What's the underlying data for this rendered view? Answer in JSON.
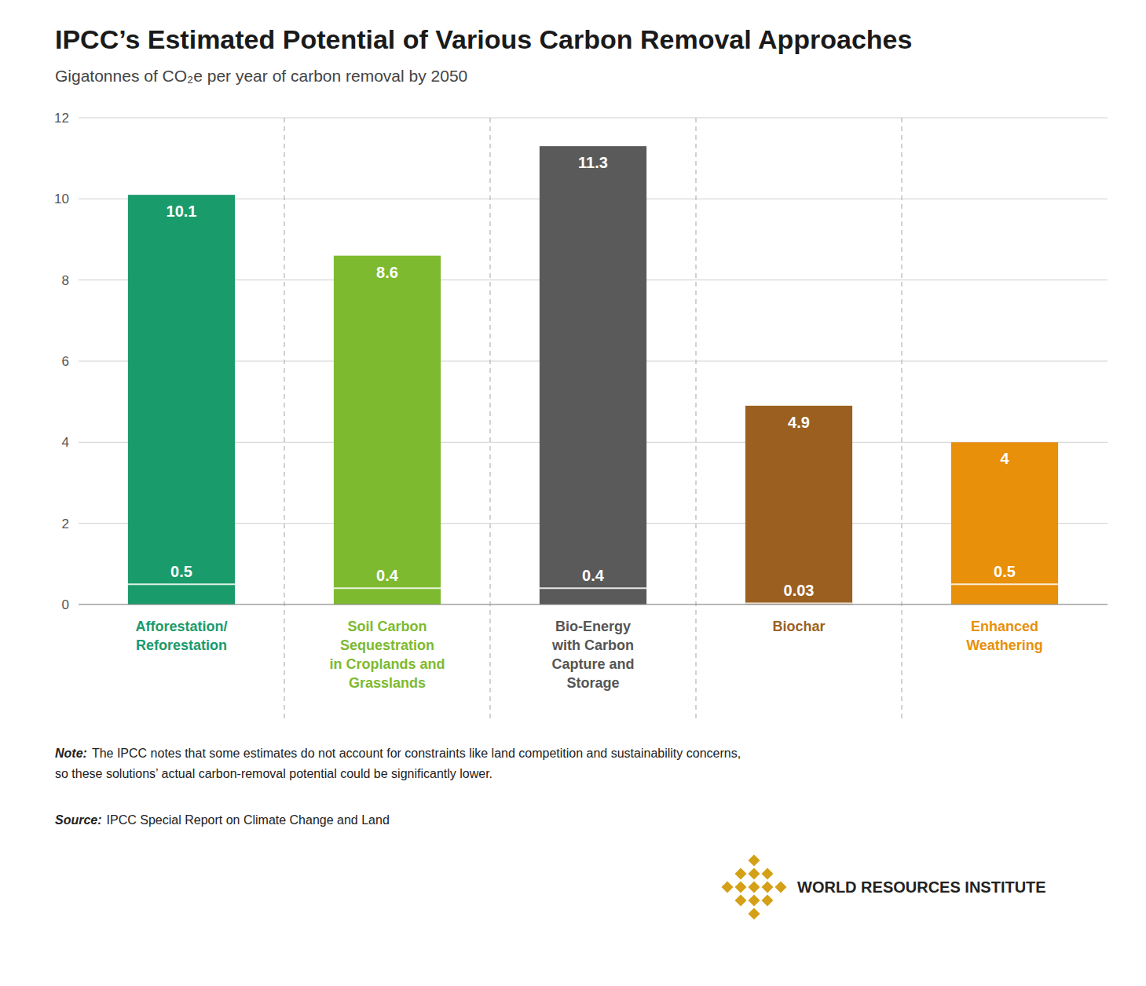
{
  "chart_data": {
    "type": "bar",
    "title": "IPCC’s Estimated Potential of Various Carbon Removal Approaches",
    "subtitle": "Gigatonnes of CO₂e per year of carbon removal by 2050",
    "categories": [
      "Afforestation/\nReforestation",
      "Soil Carbon\nSequestration\nin Croplands and\nGrasslands",
      "Bio-Energy\nwith Carbon\nCapture and\nStorage",
      "Biochar",
      "Enhanced\nWeathering"
    ],
    "values": [
      10.1,
      8.6,
      11.3,
      4.9,
      4
    ],
    "colors": [
      "#1a9b6b",
      "#7dba2f",
      "#5a5a5a",
      "#9b6020",
      "#e8900a"
    ],
    "label_colors": [
      "#1a9b6b",
      "#7dba2f",
      "#555555",
      "#9b6020",
      "#e8900a"
    ],
    "low_values": [
      0.5,
      0.4,
      0.4,
      0.03,
      0.5
    ],
    "data_labels": true,
    "ylim": [
      0,
      12
    ],
    "yticks": [
      0,
      2,
      4,
      6,
      8,
      10,
      12
    ],
    "grid": true,
    "note_label": "Note:",
    "note": "The IPCC notes that some estimates do not account for constraints like land competition and sustainability concerns,\nso these solutions’ actual carbon-removal potential could be significantly lower.",
    "source_label": "Source:",
    "source": "IPCC Special Report on Climate Change and Land",
    "credit": "WORLD RESOURCES INSTITUTE"
  }
}
